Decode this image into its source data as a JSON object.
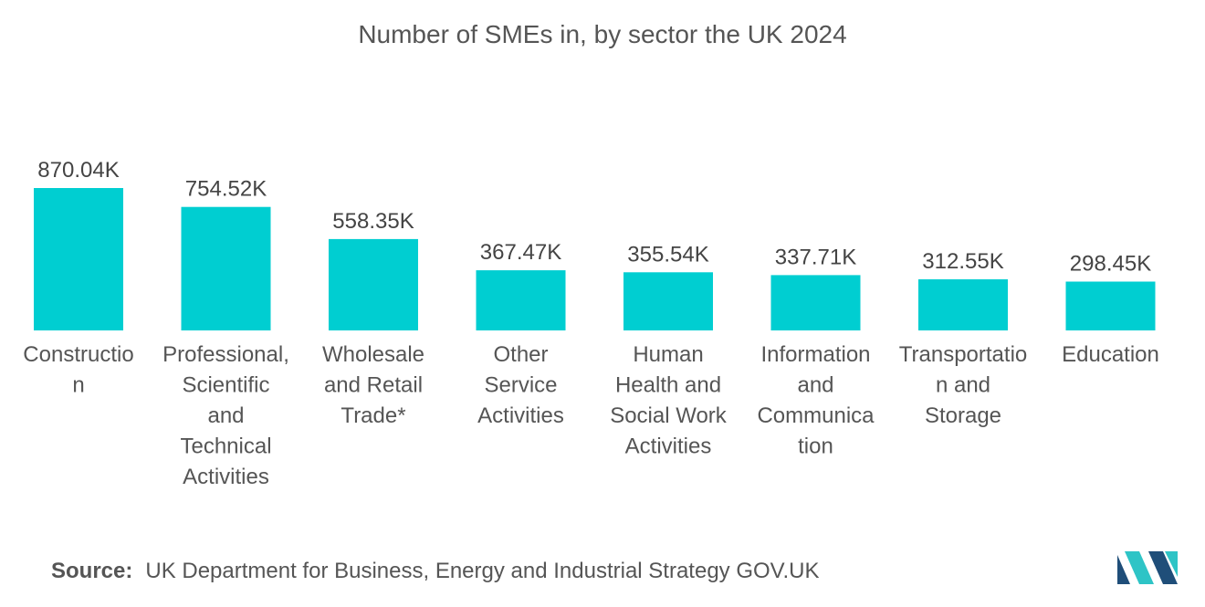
{
  "title": "Number of SMEs in, by sector the UK 2024",
  "source": {
    "label": "Source:",
    "text": "UK Department for Business, Energy and Industrial Strategy GOV.UK"
  },
  "colors": {
    "bar": "#00ced1",
    "logo_dark": "#1f4e79",
    "logo_light": "#2ec4c6"
  },
  "chart_data": {
    "type": "bar",
    "categories": [
      "Construction",
      "Professional, Scientific and Technical Activities",
      "Wholesale and Retail Trade*",
      "Other Service Activities",
      "Human Health and Social Work Activities",
      "Information and Communication",
      "Transportation and Storage",
      "Education"
    ],
    "category_lines": [
      [
        "Constructio",
        "n"
      ],
      [
        "Professional,",
        "Scientific",
        "and",
        "Technical",
        "Activities"
      ],
      [
        "Wholesale",
        "and Retail",
        "Trade*"
      ],
      [
        "Other",
        "Service",
        "Activities"
      ],
      [
        "Human",
        "Health and",
        "Social Work",
        "Activities"
      ],
      [
        "Information",
        "and",
        "Communica",
        "tion"
      ],
      [
        "Transportatio",
        "n and",
        "Storage"
      ],
      [
        "Education"
      ]
    ],
    "values": [
      870.04,
      754.52,
      558.35,
      367.47,
      355.54,
      337.71,
      312.55,
      298.45
    ],
    "data_labels": [
      "870.04K",
      "754.52K",
      "558.35K",
      "367.47K",
      "355.54K",
      "337.71K",
      "312.55K",
      "298.45K"
    ],
    "unit": "K",
    "title": "Number of SMEs in, by sector the UK 2024",
    "xlabel": "",
    "ylabel": "",
    "grid": false,
    "legend": "none"
  }
}
